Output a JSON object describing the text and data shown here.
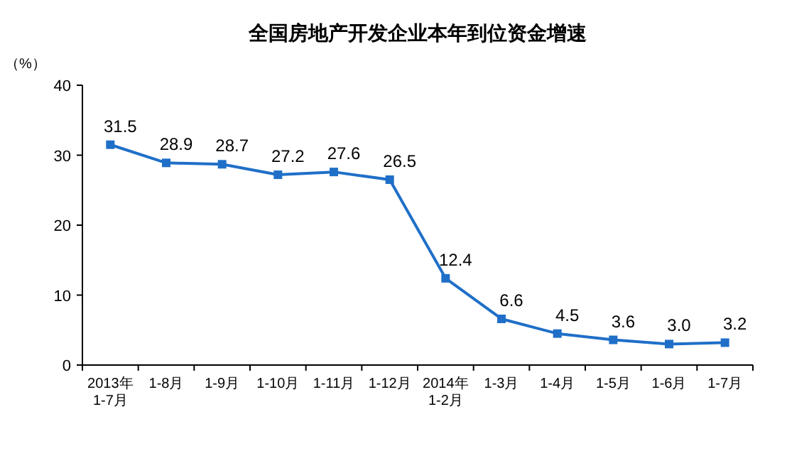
{
  "chart_data": {
    "type": "line",
    "title": "全国房地产开发企业本年到位资金增速",
    "ylabel": "（%）",
    "categories": [
      "2013年\n1-7月",
      "1-8月",
      "1-9月",
      "1-10月",
      "1-11月",
      "1-12月",
      "2014年\n1-2月",
      "1-3月",
      "1-4月",
      "1-5月",
      "1-6月",
      "1-7月"
    ],
    "series": [
      {
        "color": "#1f6fc8",
        "values": [
          31.5,
          28.9,
          28.7,
          27.2,
          27.6,
          26.5,
          12.4,
          6.6,
          4.5,
          3.6,
          3.0,
          3.2
        ],
        "value_labels": [
          "31.5",
          "28.9",
          "28.7",
          "27.2",
          "27.6",
          "26.5",
          "12.4",
          "6.6",
          "4.5",
          "3.6",
          "3.0",
          "3.2"
        ]
      }
    ],
    "ylim": [
      0,
      40
    ],
    "yticks": [
      0,
      10,
      20,
      30,
      40
    ],
    "marker": "square",
    "line_style": "solid",
    "grid": false
  }
}
